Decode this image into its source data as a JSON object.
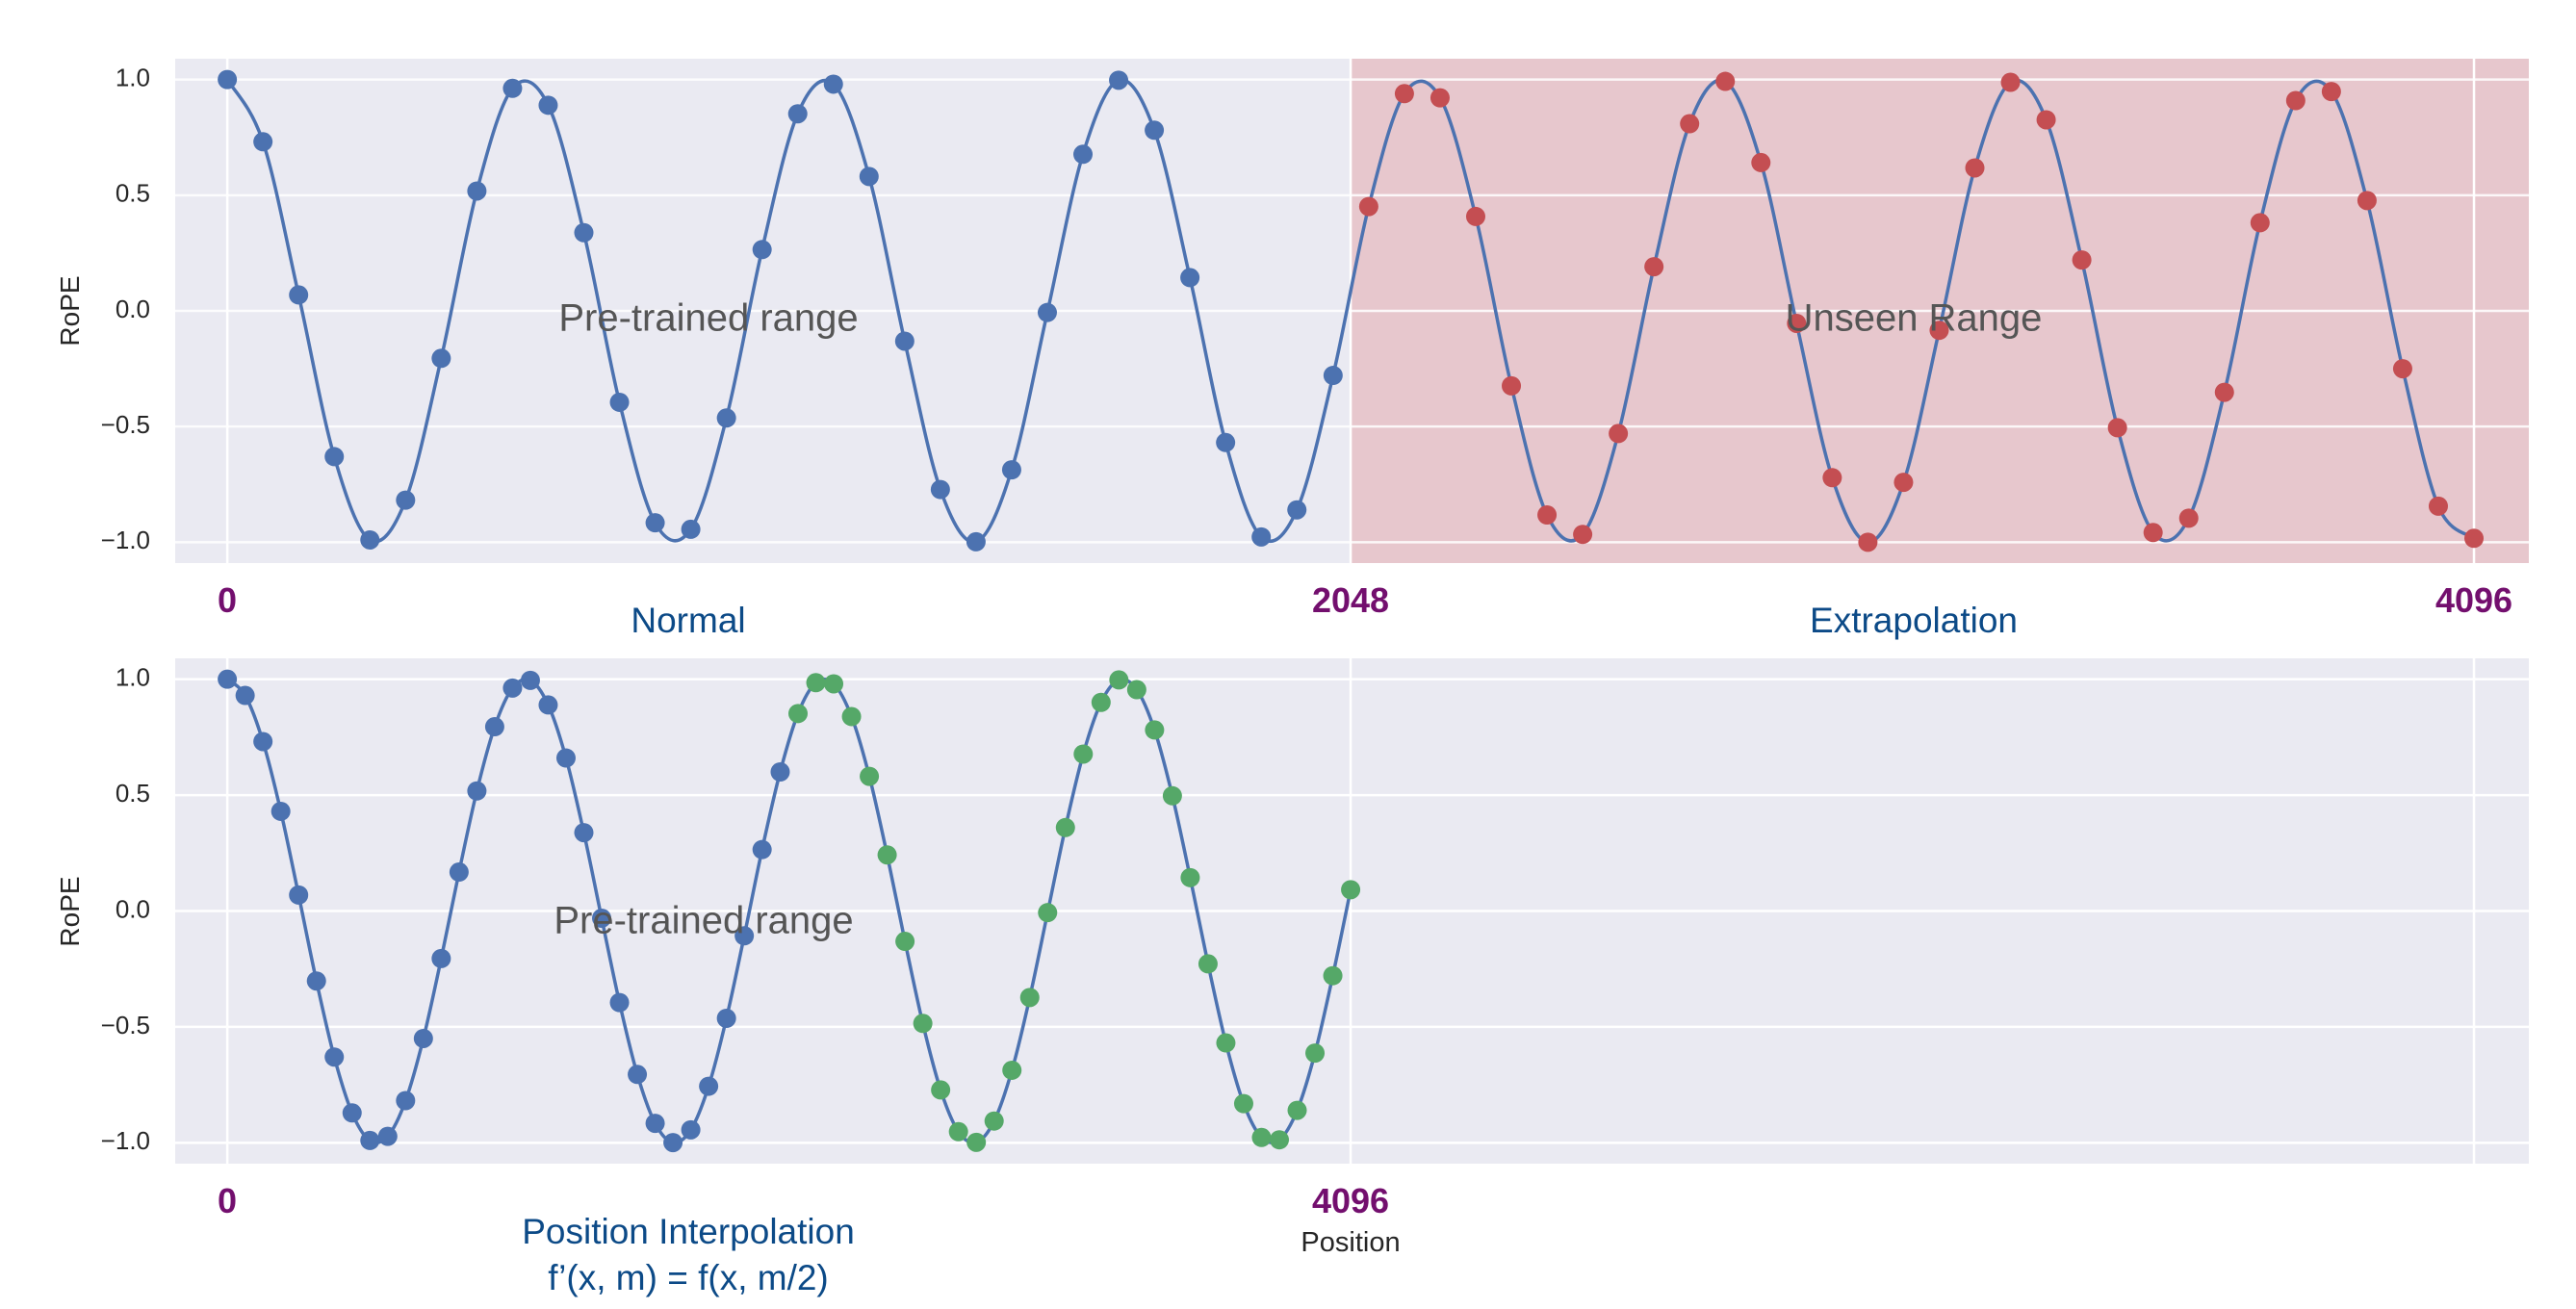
{
  "chart_data": [
    {
      "type": "line",
      "ylabel": "RoPE",
      "xlim": [
        -95,
        4196
      ],
      "ylim": [
        -1.09,
        1.09
      ],
      "yticks": [
        "1.0",
        "0.5",
        "0.0",
        "−0.5",
        "−1.0"
      ],
      "ytick_values": [
        1.0,
        0.5,
        0.0,
        -0.5,
        -1.0
      ],
      "xgrid_values": [
        0,
        2048,
        4096
      ],
      "xticks": [
        {
          "value": 0,
          "label": "0"
        },
        {
          "value": 2048,
          "label": "2048"
        },
        {
          "value": 4096,
          "label": "4096"
        }
      ],
      "grid": true,
      "shaded_region": {
        "from": 2048,
        "to": 4196,
        "color": "#e6b8be"
      },
      "annotations": [
        {
          "text": "Pre-trained range",
          "x": 1080,
          "y": -0.03
        },
        {
          "text": "Unseen Range",
          "x": 3290,
          "y": -0.03
        }
      ],
      "captions": [
        {
          "text": "Normal",
          "x": 1130
        },
        {
          "text": "Extrapolation",
          "x": 3290
        }
      ],
      "x": [
        0,
        65,
        130,
        195,
        260,
        325,
        390,
        455,
        520,
        585,
        650,
        715,
        780,
        845,
        910,
        975,
        1040,
        1105,
        1170,
        1235,
        1300,
        1365,
        1430,
        1495,
        1560,
        1625,
        1690,
        1755,
        1820,
        1885,
        1950,
        2016,
        2081,
        2146,
        2211,
        2276,
        2341,
        2406,
        2471,
        2536,
        2601,
        2666,
        2731,
        2796,
        2861,
        2926,
        2991,
        3056,
        3121,
        3186,
        3251,
        3316,
        3381,
        3446,
        3511,
        3576,
        3641,
        3706,
        3771,
        3836,
        3901,
        3966,
        4031,
        4096
      ],
      "y": [
        1.0,
        0.731,
        0.069,
        -0.63,
        -0.99,
        -0.818,
        -0.205,
        0.518,
        0.962,
        0.889,
        0.338,
        -0.395,
        -0.916,
        -0.944,
        -0.463,
        0.265,
        0.852,
        0.98,
        0.581,
        -0.131,
        -0.772,
        -0.998,
        -0.687,
        -0.007,
        0.677,
        0.997,
        0.781,
        0.144,
        -0.569,
        -0.977,
        -0.86,
        -0.279,
        0.451,
        0.939,
        0.921,
        0.408,
        -0.324,
        -0.882,
        -0.966,
        -0.53,
        0.191,
        0.809,
        0.992,
        0.641,
        -0.054,
        -0.721,
        -1.0,
        -0.741,
        -0.084,
        0.618,
        0.988,
        0.826,
        0.22,
        -0.505,
        -0.958,
        -0.896,
        -0.352,
        0.381,
        0.909,
        0.948,
        0.477,
        -0.25,
        -0.844,
        -0.983
      ],
      "point_split_index": 32,
      "colors": {
        "line": "#4c72b0",
        "points_before": "#4c72b0",
        "points_after": "#c44e52",
        "background": "#eaeaf2"
      }
    },
    {
      "type": "line",
      "ylabel": "RoPE",
      "xlabel": "Position",
      "xlim": [
        -190,
        8392
      ],
      "ylim": [
        -1.09,
        1.09
      ],
      "yticks": [
        "1.0",
        "0.5",
        "0.0",
        "−0.5",
        "−1.0"
      ],
      "ytick_values": [
        1.0,
        0.5,
        0.0,
        -0.5,
        -1.0
      ],
      "xgrid_values": [
        0,
        4096,
        8192
      ],
      "xticks": [
        {
          "value": 0,
          "label": "0"
        },
        {
          "value": 4096,
          "label": "4096"
        }
      ],
      "grid": true,
      "annotations": [
        {
          "text": "Pre-trained range",
          "x": 2100,
          "y": -0.03
        }
      ],
      "captions": [
        {
          "text": "Position Interpolation",
          "x": 2260
        },
        {
          "text": "f’(x, m) = f(x, m/2)",
          "x": 2260
        }
      ],
      "x": [
        0,
        65,
        130,
        195,
        260,
        325,
        390,
        455,
        520,
        585,
        650,
        715,
        780,
        845,
        910,
        975,
        1040,
        1105,
        1170,
        1235,
        1300,
        1365,
        1430,
        1495,
        1560,
        1625,
        1690,
        1755,
        1820,
        1885,
        1950,
        2016,
        2081,
        2146,
        2211,
        2276,
        2341,
        2406,
        2471,
        2536,
        2601,
        2666,
        2731,
        2796,
        2861,
        2926,
        2991,
        3056,
        3121,
        3186,
        3251,
        3316,
        3381,
        3446,
        3511,
        3576,
        3641,
        3706,
        3771,
        3836,
        3901,
        3966,
        4031,
        4096
      ],
      "y": [
        1.0,
        0.93,
        0.731,
        0.43,
        0.069,
        -0.302,
        -0.63,
        -0.871,
        -0.99,
        -0.972,
        -0.818,
        -0.55,
        -0.205,
        0.168,
        0.518,
        0.795,
        0.962,
        0.995,
        0.889,
        0.66,
        0.338,
        -0.031,
        -0.395,
        -0.705,
        -0.916,
        -0.999,
        -0.944,
        -0.756,
        -0.463,
        -0.107,
        0.265,
        0.6,
        0.852,
        0.985,
        0.98,
        0.839,
        0.581,
        0.242,
        -0.131,
        -0.485,
        -0.772,
        -0.952,
        -0.998,
        -0.906,
        -0.687,
        -0.373,
        -0.007,
        0.36,
        0.677,
        0.9,
        0.997,
        0.955,
        0.781,
        0.497,
        0.144,
        -0.228,
        -0.569,
        -0.831,
        -0.977,
        -0.987,
        -0.86,
        -0.613,
        -0.279,
        0.092
      ],
      "point_split_index": 32,
      "colors": {
        "line": "#4c72b0",
        "points_before": "#4c72b0",
        "points_after": "#55a868",
        "background": "#eaeaf2"
      }
    }
  ]
}
